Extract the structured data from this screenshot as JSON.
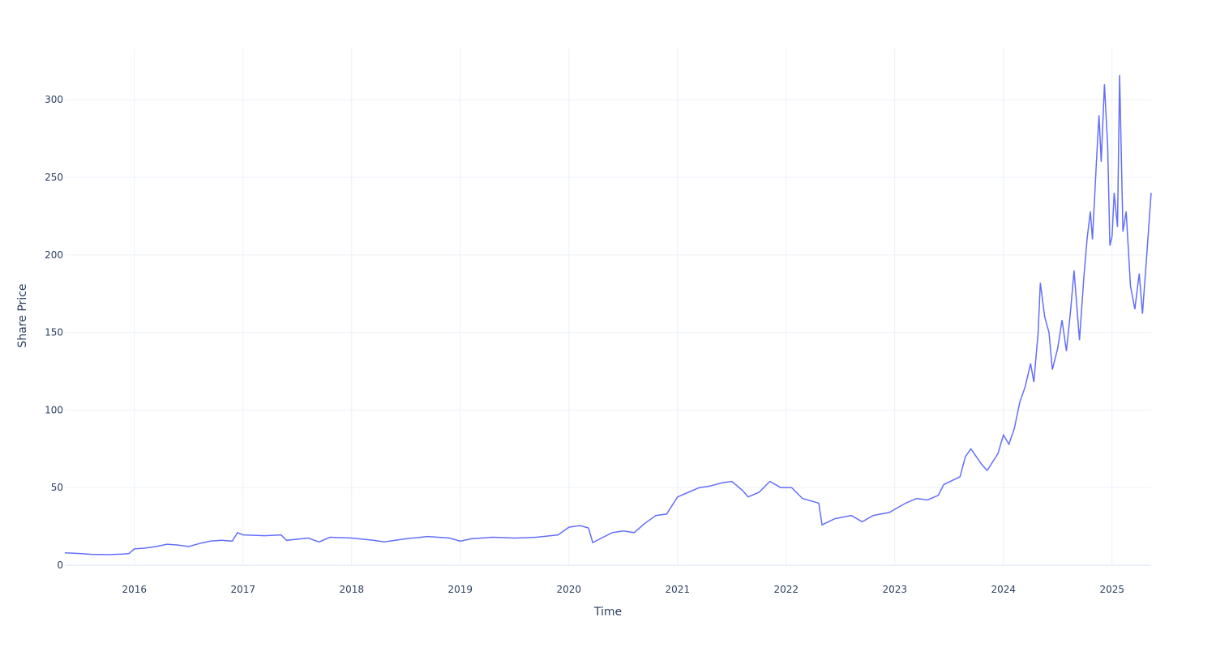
{
  "chart_data": {
    "type": "line",
    "x_label": "Time",
    "y_label": "Share Price",
    "xlim": [
      2015.36,
      2025.36
    ],
    "xticks": [
      2016,
      2017,
      2018,
      2019,
      2020,
      2021,
      2022,
      2023,
      2024,
      2025
    ],
    "ylim": [
      0,
      333
    ],
    "yticks": [
      0,
      50,
      100,
      150,
      200,
      250,
      300
    ],
    "grid": true,
    "series": [
      {
        "color": "#636efa",
        "x": [
          2015.36,
          2015.5,
          2015.6,
          2015.75,
          2015.9,
          2015.95,
          2016.0,
          2016.1,
          2016.2,
          2016.3,
          2016.4,
          2016.5,
          2016.6,
          2016.7,
          2016.8,
          2016.9,
          2016.95,
          2017.0,
          2017.2,
          2017.35,
          2017.4,
          2017.6,
          2017.7,
          2017.8,
          2018.0,
          2018.2,
          2018.3,
          2018.5,
          2018.7,
          2018.9,
          2019.0,
          2019.1,
          2019.3,
          2019.5,
          2019.7,
          2019.9,
          2020.0,
          2020.1,
          2020.18,
          2020.22,
          2020.3,
          2020.4,
          2020.5,
          2020.6,
          2020.7,
          2020.8,
          2020.9,
          2021.0,
          2021.1,
          2021.2,
          2021.3,
          2021.4,
          2021.5,
          2021.6,
          2021.65,
          2021.75,
          2021.85,
          2021.95,
          2022.05,
          2022.15,
          2022.3,
          2022.33,
          2022.45,
          2022.6,
          2022.7,
          2022.8,
          2022.95,
          2023.0,
          2023.1,
          2023.2,
          2023.3,
          2023.4,
          2023.45,
          2023.6,
          2023.65,
          2023.7,
          2023.8,
          2023.85,
          2023.95,
          2024.0,
          2024.05,
          2024.1,
          2024.15,
          2024.2,
          2024.25,
          2024.28,
          2024.32,
          2024.34,
          2024.38,
          2024.42,
          2024.45,
          2024.5,
          2024.54,
          2024.58,
          2024.62,
          2024.65,
          2024.7,
          2024.74,
          2024.77,
          2024.8,
          2024.82,
          2024.86,
          2024.88,
          2024.9,
          2024.93,
          2024.96,
          2024.98,
          2025.0,
          2025.02,
          2025.05,
          2025.07,
          2025.1,
          2025.13,
          2025.17,
          2025.21,
          2025.25,
          2025.28,
          2025.32,
          2025.36
        ],
        "values": [
          8,
          7.5,
          7,
          6.8,
          7.2,
          7.5,
          10.5,
          11,
          12,
          13.5,
          13,
          12,
          14,
          15.5,
          16,
          15.5,
          21,
          19.5,
          19,
          19.5,
          16,
          17.5,
          15,
          18,
          17.5,
          16,
          15,
          17,
          18.5,
          17.5,
          15.5,
          17,
          18,
          17.5,
          18,
          19.5,
          24.5,
          25.5,
          24,
          14.5,
          17.5,
          21,
          22,
          21,
          27,
          32,
          33,
          44,
          47,
          50,
          51,
          53,
          54,
          48,
          44,
          47,
          54,
          50,
          50,
          43,
          40,
          26,
          30,
          32,
          28,
          32,
          34,
          36,
          40,
          43,
          42,
          45,
          52,
          57,
          70,
          75,
          65,
          61,
          72,
          84,
          78,
          88,
          105,
          115,
          130,
          118,
          150,
          182,
          160,
          150,
          126,
          140,
          158,
          138,
          165,
          190,
          145,
          185,
          210,
          228,
          210,
          265,
          290,
          260,
          310,
          270,
          206,
          212,
          240,
          218,
          316,
          215,
          228,
          180,
          165,
          188,
          162,
          200,
          240
        ]
      }
    ]
  }
}
